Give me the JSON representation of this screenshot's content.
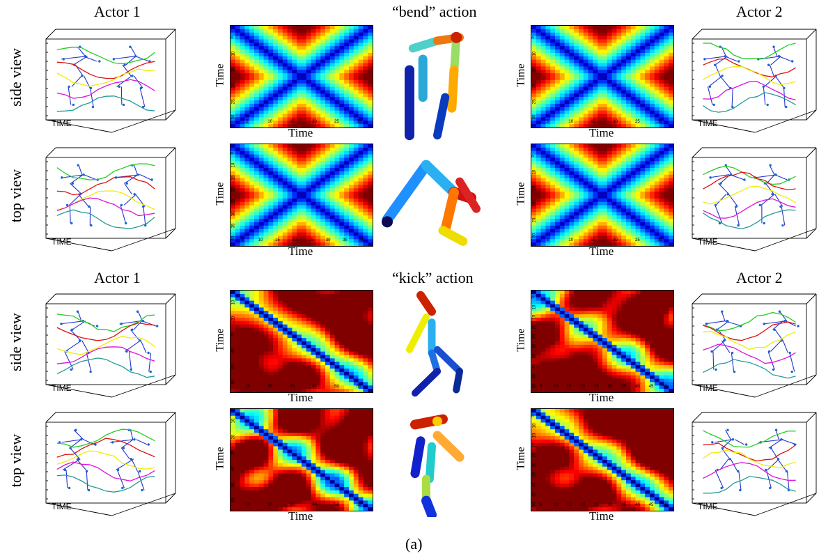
{
  "figure": {
    "caption": "(a)",
    "sections": [
      {
        "actor_left": "Actor 1",
        "action": "“bend” action",
        "actor_right": "Actor 2",
        "rows": [
          {
            "view": "side view",
            "heatmap_left": {
              "ylabel": "Time",
              "xlabel": "Time",
              "xticks": [
                "5",
                "10",
                "15",
                "20",
                "25",
                "30"
              ],
              "yticks": [
                "5",
                "10",
                "15",
                "20",
                "25",
                "30"
              ]
            },
            "heatmap_right": {
              "ylabel": "Time",
              "xlabel": "Time",
              "xticks": [
                "5",
                "10",
                "15",
                "20",
                "25",
                "30"
              ],
              "yticks": [
                "5",
                "10",
                "15",
                "20",
                "25",
                "30"
              ]
            },
            "cube_left_label": "TIME",
            "cube_right_label": "TIME"
          },
          {
            "view": "top view",
            "heatmap_left": {
              "ylabel": "Time",
              "xlabel": "Time",
              "xticks": [
                "5",
                "10",
                "15",
                "20",
                "25",
                "30",
                "35",
                "40"
              ],
              "yticks": [
                "5",
                "10",
                "15",
                "20",
                "25",
                "30",
                "35",
                "40"
              ]
            },
            "heatmap_right": {
              "ylabel": "Time",
              "xlabel": "Time",
              "xticks": [
                "5",
                "10",
                "15",
                "20",
                "25",
                "30"
              ],
              "yticks": [
                "5",
                "10",
                "15",
                "20",
                "25",
                "30"
              ]
            },
            "cube_left_label": "TIME",
            "cube_right_label": "TIME"
          }
        ]
      },
      {
        "actor_left": "Actor 1",
        "action": "“kick” action",
        "actor_right": "Actor 2",
        "rows": [
          {
            "view": "side view",
            "heatmap_left": {
              "ylabel": "Time",
              "xlabel": "Time",
              "xticks": [
                "10",
                "20",
                "30",
                "40",
                "50",
                "60"
              ],
              "yticks": [
                "10",
                "20",
                "30",
                "40",
                "50",
                "60"
              ]
            },
            "heatmap_right": {
              "ylabel": "Time",
              "xlabel": "Time",
              "xticks": [
                "5",
                "10",
                "15",
                "20",
                "25",
                "30",
                "35",
                "40",
                "45",
                "50"
              ],
              "yticks": [
                "5",
                "10",
                "15",
                "20",
                "25",
                "30",
                "35",
                "40",
                "45",
                "50"
              ]
            },
            "cube_left_label": "TIME",
            "cube_right_label": "TIME"
          },
          {
            "view": "top view",
            "heatmap_left": {
              "ylabel": "Time",
              "xlabel": "Time",
              "xticks": [
                "10",
                "20",
                "30",
                "40",
                "50",
                "60"
              ],
              "yticks": [
                "10",
                "20",
                "30",
                "40",
                "50",
                "60"
              ]
            },
            "heatmap_right": {
              "ylabel": "Time",
              "xlabel": "Time",
              "xticks": [
                "5",
                "10",
                "15",
                "20",
                "25",
                "30",
                "35",
                "40",
                "45",
                "50"
              ],
              "yticks": [
                "5",
                "10",
                "15",
                "20",
                "25",
                "30",
                "35",
                "40",
                "45",
                "50"
              ]
            },
            "cube_left_label": "TIME",
            "cube_right_label": "TIME"
          }
        ]
      }
    ]
  },
  "colors": {
    "limb_blue": "#2233cc",
    "joint": "#1a66cc",
    "traj_green": "#22cc22",
    "traj_red": "#dd1111",
    "traj_yellow": "#eeee00",
    "traj_magenta": "#dd11dd",
    "traj_teal": "#229999"
  },
  "icons": [
    "skeleton-3d-trajectory-icon",
    "ssm-heatmap",
    "body-cylinder-model-icon"
  ]
}
